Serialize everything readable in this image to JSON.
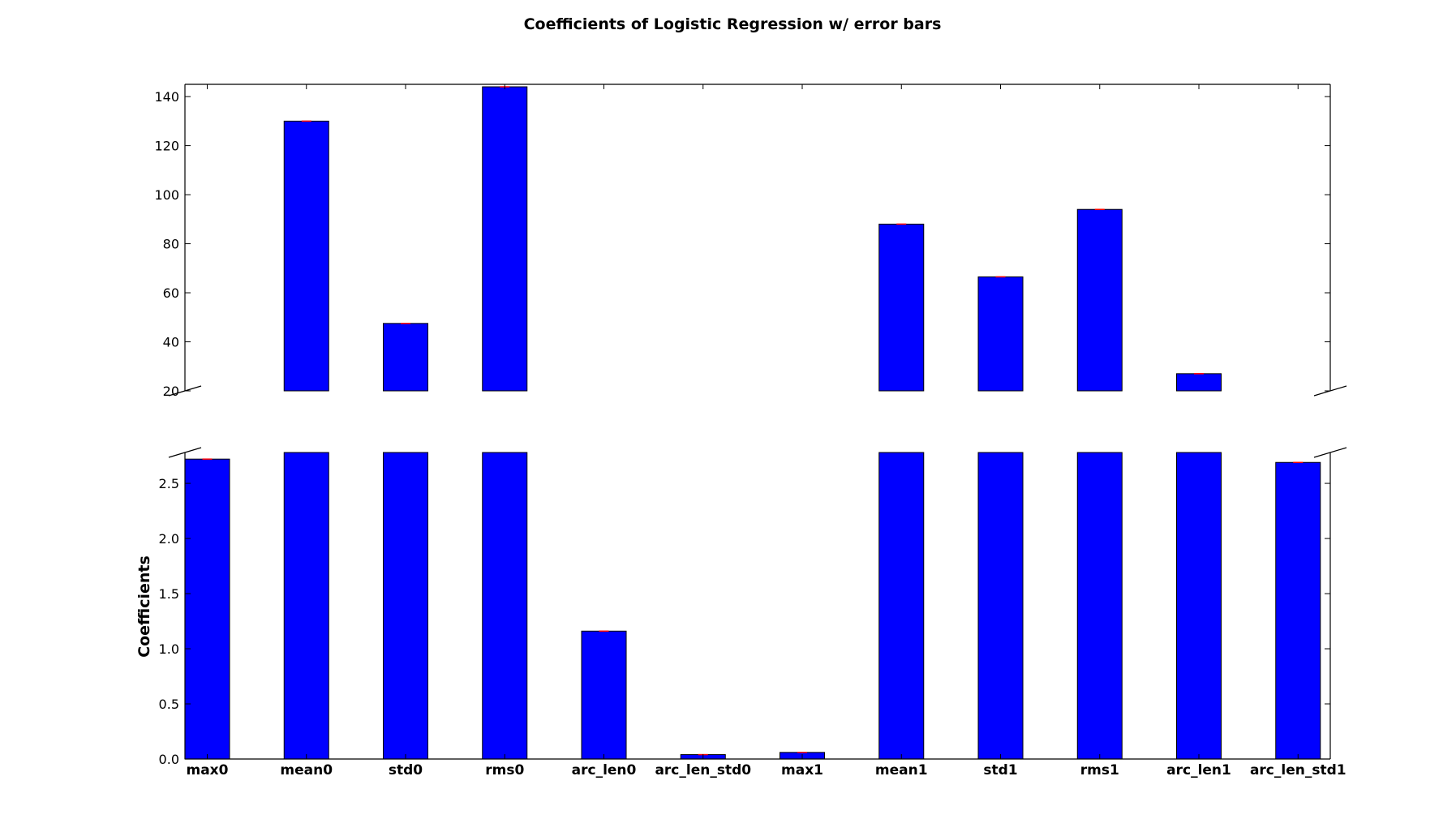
{
  "chart_data": {
    "type": "bar",
    "title": "Coefficients of Logistic Regression w/ error bars",
    "ylabel": "Coefficients",
    "xlabel": "",
    "categories": [
      "max0",
      "mean0",
      "std0",
      "rms0",
      "arc_len0",
      "arc_len_std0",
      "max1",
      "mean1",
      "std1",
      "rms1",
      "arc_len1",
      "arc_len_std1"
    ],
    "values": [
      2.72,
      130.0,
      47.5,
      144.0,
      1.16,
      0.04,
      0.06,
      88.0,
      66.5,
      94.0,
      27.0,
      2.69
    ],
    "broken_axis": true,
    "upper_ylim": [
      20,
      145
    ],
    "upper_yticks": [
      20,
      40,
      60,
      80,
      100,
      120,
      140
    ],
    "lower_ylim": [
      0,
      2.78
    ],
    "lower_yticks": [
      "0.0",
      "0.5",
      "1.0",
      "1.5",
      "2.0",
      "2.5"
    ],
    "bar_color": "#0000ff",
    "error_bar_color": "#ff0000",
    "grid": false
  }
}
